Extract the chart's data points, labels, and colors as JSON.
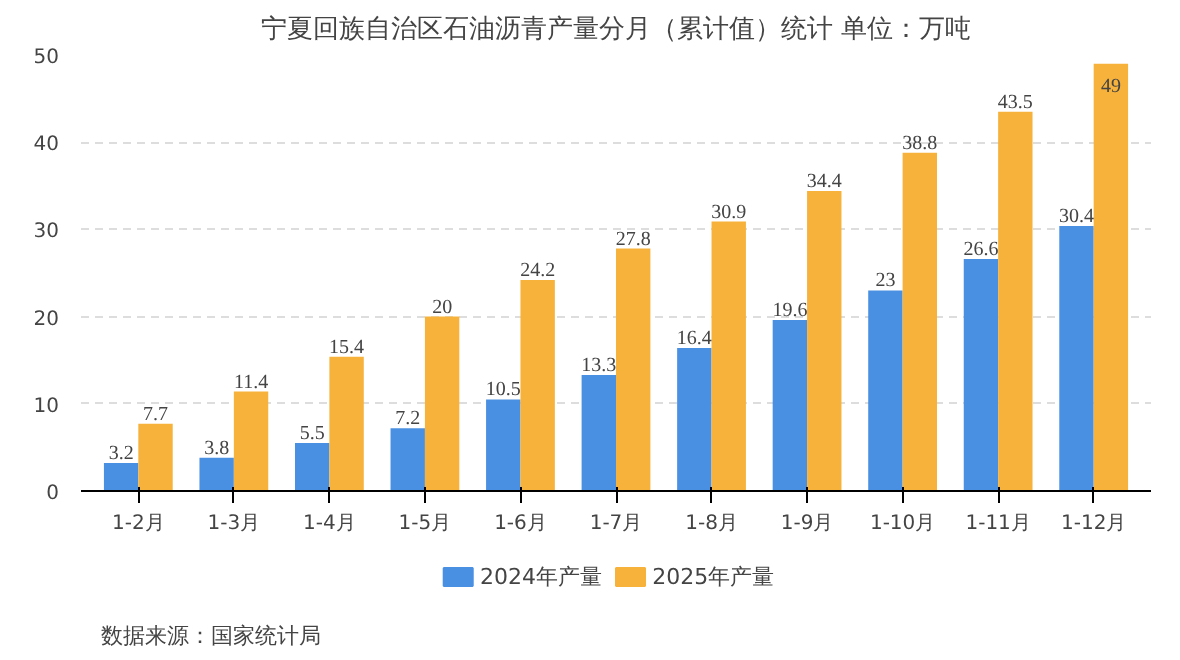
{
  "chart_data": {
    "type": "bar",
    "title": "宁夏回族自治区石油沥青产量分月（累计值）统计 单位：万吨",
    "categories": [
      "1-2月",
      "1-3月",
      "1-4月",
      "1-5月",
      "1-6月",
      "1-7月",
      "1-8月",
      "1-9月",
      "1-10月",
      "1-11月",
      "1-12月"
    ],
    "series": [
      {
        "name": "2024年产量",
        "color": "#4a90e2",
        "values": [
          3.2,
          3.8,
          5.5,
          7.2,
          10.5,
          13.3,
          16.4,
          19.6,
          23,
          26.6,
          30.4
        ]
      },
      {
        "name": "2025年产量",
        "color": "#f7b23b",
        "values": [
          7.7,
          11.4,
          15.4,
          20,
          24.2,
          27.8,
          30.9,
          34.4,
          38.8,
          43.5,
          49
        ]
      }
    ],
    "ylim": [
      0,
      50
    ],
    "yticks": [
      0,
      10,
      20,
      30,
      40,
      50
    ],
    "grid": "y",
    "legend": "bottom",
    "data_labels": true,
    "annotations": [
      "数据来源：国家统计局"
    ]
  }
}
